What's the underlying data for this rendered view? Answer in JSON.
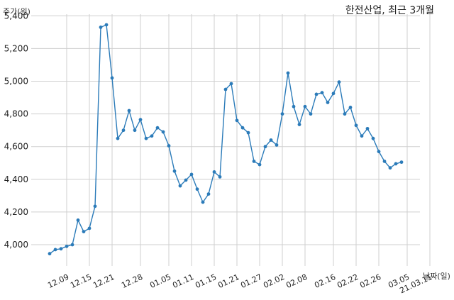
{
  "chart_data": {
    "type": "line",
    "title": "한전산업, 최근 3개월",
    "ylabel": "주가(원)",
    "xlabel": "날짜(일)",
    "ylim": [
      3870,
      5410
    ],
    "yticks": [
      4000,
      4200,
      4400,
      4600,
      4800,
      5000,
      5200,
      5400
    ],
    "ytick_labels": [
      "4,000",
      "4,200",
      "4,400",
      "4,600",
      "4,800",
      "5,000",
      "5,200",
      "5,400"
    ],
    "grid": true,
    "line_color": "#2b7bb9",
    "xtick_labels": [
      "12.09",
      "12.15",
      "12.21",
      "12.28",
      "01.05",
      "01.11",
      "01.15",
      "01.21",
      "01.27",
      "02.02",
      "02.08",
      "02.16",
      "02.22",
      "02.26",
      "03.05",
      "21.03.11"
    ],
    "xtick_indices": [
      3,
      7,
      11,
      16,
      21,
      25,
      29,
      33,
      37,
      41,
      45,
      50,
      54,
      58,
      63,
      67
    ],
    "values": [
      3945,
      3970,
      3975,
      3990,
      4000,
      4150,
      4080,
      4100,
      4235,
      5330,
      5345,
      5020,
      4650,
      4700,
      4820,
      4700,
      4765,
      4650,
      4665,
      4715,
      4690,
      4605,
      4450,
      4360,
      4395,
      4430,
      4340,
      4260,
      4310,
      4445,
      4415,
      4950,
      4985,
      4760,
      4715,
      4685,
      4510,
      4490,
      4600,
      4640,
      4610,
      4800,
      5050,
      4845,
      4735,
      4845,
      4800,
      4920,
      4930,
      4870,
      4925,
      4995,
      4800,
      4840,
      4730,
      4665,
      4710,
      4650,
      4570,
      4510,
      4470,
      4495,
      4505
    ]
  }
}
